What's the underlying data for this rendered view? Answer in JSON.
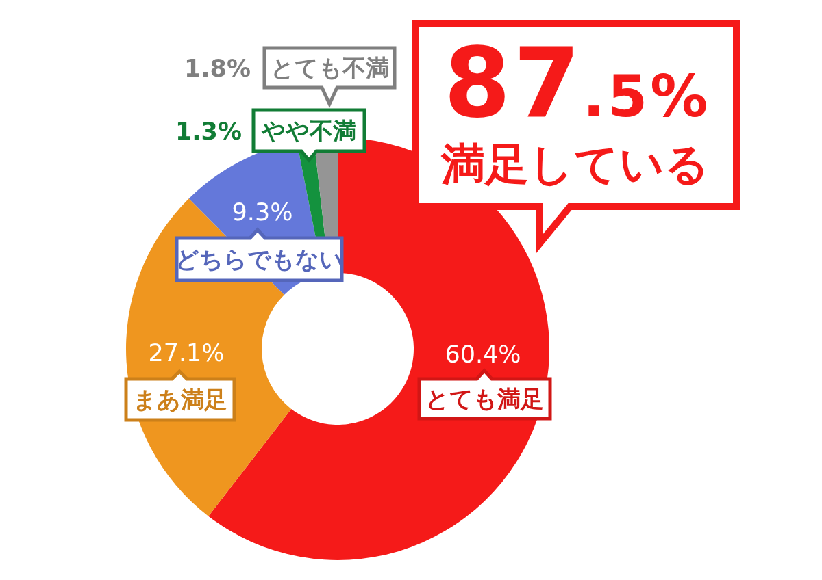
{
  "chart_data": {
    "type": "donut",
    "categories": [
      "とても満足",
      "まあ満足",
      "どちらでもない",
      "やや不満",
      "とても不満"
    ],
    "values": [
      60.4,
      27.1,
      9.3,
      1.3,
      1.8
    ],
    "colors": [
      "#f51a19",
      "#ef961f",
      "#6478da",
      "#14923e",
      "#959595"
    ],
    "value_labels": [
      "60.4%",
      "27.1%",
      "9.3%",
      "1.3%",
      "1.8%"
    ],
    "annotations": [
      "87.5%",
      "満足している"
    ]
  }
}
